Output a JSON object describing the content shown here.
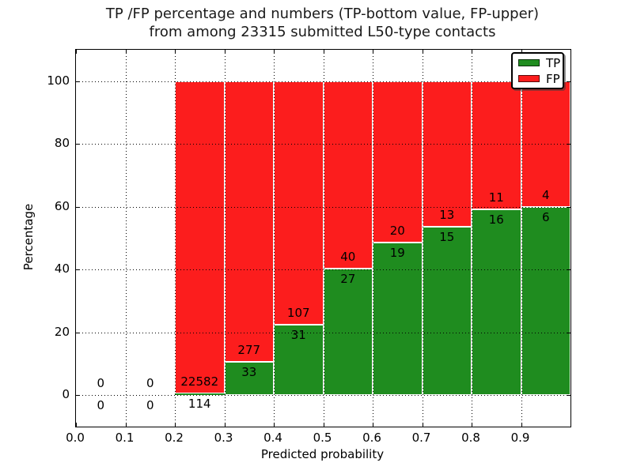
{
  "title": {
    "line1": "TP /FP percentage and numbers (TP-bottom value, FP-upper)",
    "line2": "from among 23315 submitted L50-type contacts"
  },
  "chart_data": {
    "type": "bar",
    "stacked": true,
    "title": "TP /FP percentage and numbers (TP-bottom value, FP-upper) from among 23315 submitted L50-type contacts",
    "title_lines": [
      "TP /FP percentage and numbers (TP-bottom value, FP-upper)",
      "from among 23315 submitted L50-type contacts"
    ],
    "xlabel": "Predicted probability",
    "ylabel": "Percentage",
    "xlim": [
      0.0,
      1.0
    ],
    "ylim": [
      -10,
      110
    ],
    "x_tick_values": [
      0.0,
      0.1,
      0.2,
      0.3,
      0.4,
      0.5,
      0.6,
      0.7,
      0.8,
      0.9
    ],
    "x_tick_labels": [
      "0.0",
      "0.1",
      "0.2",
      "0.3",
      "0.4",
      "0.5",
      "0.6",
      "0.7",
      "0.8",
      "0.9"
    ],
    "y_tick_values": [
      0,
      20,
      40,
      60,
      80,
      100
    ],
    "y_tick_labels": [
      "0",
      "20",
      "40",
      "60",
      "80",
      "100"
    ],
    "grid": "dotted",
    "total_contacts": 23315,
    "bin_edges": [
      0.0,
      0.1,
      0.2,
      0.3,
      0.4,
      0.5,
      0.6,
      0.7,
      0.8,
      0.9,
      1.0
    ],
    "series": [
      {
        "name": "TP",
        "color": "#1f8c1f",
        "counts": [
          0,
          0,
          114,
          33,
          31,
          27,
          19,
          15,
          16,
          6
        ]
      },
      {
        "name": "FP",
        "color": "#fc1d1d",
        "counts": [
          0,
          0,
          22582,
          277,
          107,
          40,
          20,
          13,
          11,
          4
        ]
      }
    ],
    "tp_percent": [
      null,
      null,
      0.5,
      10.65,
      22.46,
      40.3,
      48.72,
      53.57,
      59.26,
      60.0
    ],
    "bar_total_percent": 100,
    "bar_edge_color": "#ffffff",
    "legend": {
      "position": "upper right",
      "entries": [
        {
          "label": "TP",
          "color": "#1f8c1f"
        },
        {
          "label": "FP",
          "color": "#fc1d1d"
        }
      ]
    }
  }
}
